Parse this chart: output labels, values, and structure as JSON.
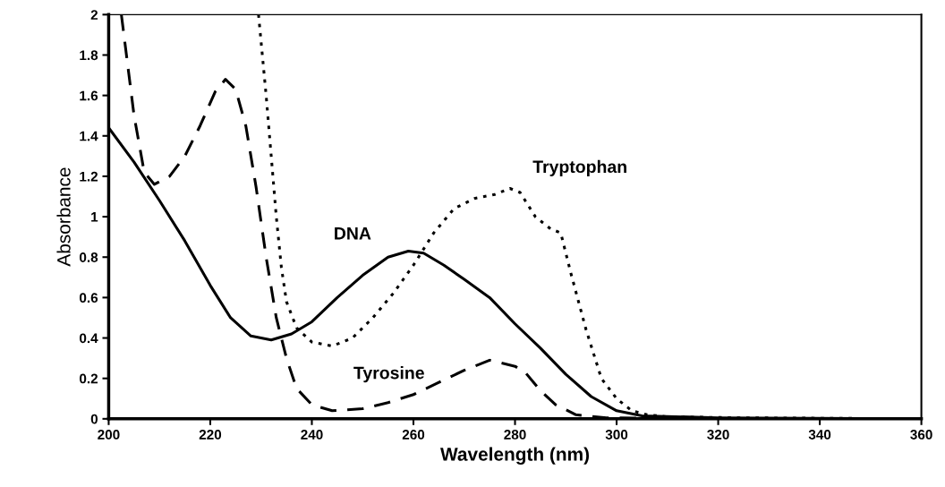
{
  "chart_data": {
    "type": "line",
    "xlabel": "Wavelength (nm)",
    "ylabel": "Absorbance",
    "xlim": [
      200,
      360
    ],
    "xticks": [
      200,
      220,
      240,
      260,
      280,
      300,
      320,
      340,
      360
    ],
    "ylim": [
      0,
      2
    ],
    "yticks": [
      0,
      {
        "value": 0.2,
        "label": "0.2"
      },
      {
        "value": 0.4,
        "label": "0.4"
      },
      {
        "value": 0.6,
        "label": "0.6"
      },
      {
        "value": 0.8,
        "label": "0.8"
      },
      1,
      {
        "value": 1.2,
        "label": "1.2"
      },
      {
        "value": 1.4,
        "label": "1.4"
      },
      {
        "value": 1.6,
        "label": "1.6"
      },
      {
        "value": 1.8,
        "label": "1.8"
      },
      2
    ],
    "grid": false,
    "legend": false,
    "series": [
      {
        "name": "DNA",
        "color": "#000000",
        "line_style": "solid",
        "x": [
          200,
          205,
          210,
          215,
          220,
          224,
          228,
          232,
          236,
          240,
          245,
          250,
          255,
          259,
          262,
          266,
          270,
          275,
          280,
          285,
          290,
          295,
          300,
          305,
          320,
          360
        ],
        "values": [
          1.44,
          1.27,
          1.08,
          0.88,
          0.66,
          0.5,
          0.41,
          0.39,
          0.42,
          0.48,
          0.6,
          0.71,
          0.8,
          0.83,
          0.82,
          0.76,
          0.69,
          0.6,
          0.47,
          0.35,
          0.22,
          0.11,
          0.04,
          0.015,
          0.005,
          0
        ]
      },
      {
        "name": "Tyrosine",
        "color": "#000000",
        "line_style": "dashed",
        "x": [
          202.5,
          205,
          207,
          209,
          212,
          215,
          218,
          221,
          223,
          225,
          227,
          229,
          231,
          233,
          235,
          237,
          240,
          244,
          250,
          255,
          260,
          265,
          270,
          275,
          280,
          282,
          285,
          288,
          292,
          298,
          320,
          360
        ],
        "values": [
          2,
          1.5,
          1.22,
          1.16,
          1.2,
          1.3,
          1.45,
          1.62,
          1.68,
          1.63,
          1.45,
          1.15,
          0.8,
          0.5,
          0.3,
          0.15,
          0.07,
          0.04,
          0.05,
          0.08,
          0.12,
          0.18,
          0.24,
          0.29,
          0.26,
          0.23,
          0.14,
          0.07,
          0.02,
          0.005,
          0,
          0
        ]
      },
      {
        "name": "Tryptophan",
        "color": "#000000",
        "line_style": "dotted",
        "x": [
          229.5,
          231,
          232,
          233,
          234,
          235,
          237,
          240,
          244,
          248,
          252,
          256,
          260,
          264,
          268,
          272,
          276,
          279,
          281,
          284,
          287,
          289,
          291,
          294,
          297,
          300,
          303,
          306,
          310,
          325,
          360
        ],
        "values": [
          2,
          1.6,
          1.3,
          1.0,
          0.75,
          0.58,
          0.45,
          0.38,
          0.36,
          0.4,
          0.5,
          0.62,
          0.76,
          0.92,
          1.04,
          1.09,
          1.11,
          1.14,
          1.12,
          1.0,
          0.94,
          0.92,
          0.72,
          0.44,
          0.2,
          0.1,
          0.04,
          0.02,
          0.01,
          0.005,
          0
        ]
      }
    ]
  }
}
